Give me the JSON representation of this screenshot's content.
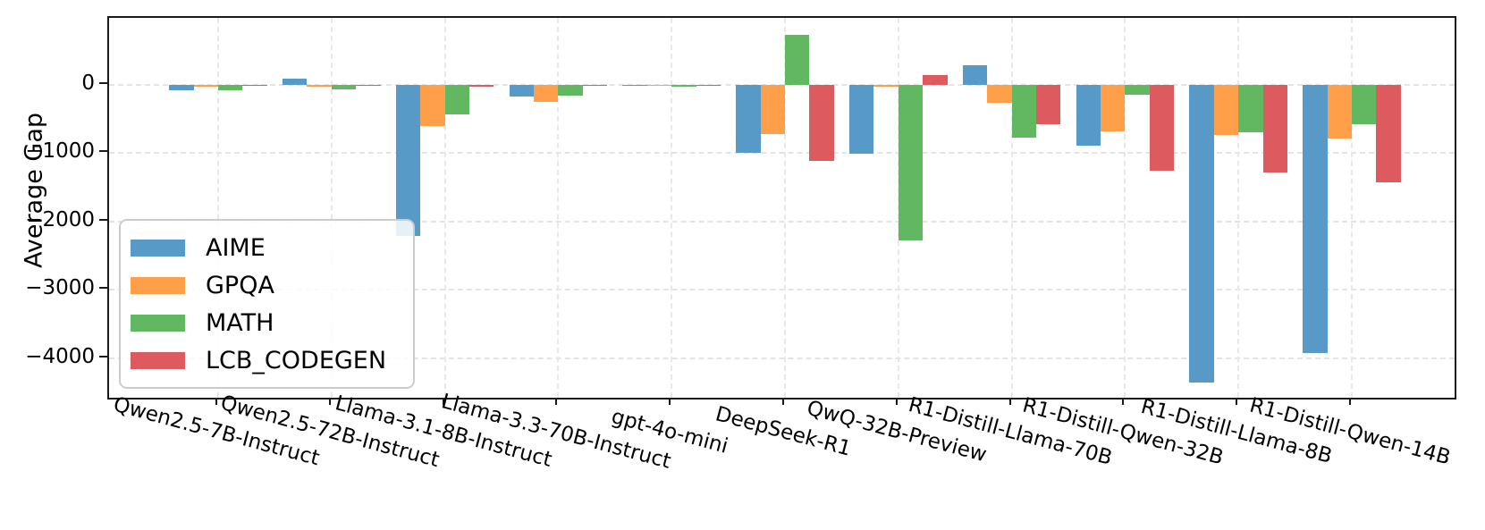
{
  "chart_data": {
    "type": "bar",
    "title": "",
    "xlabel": "",
    "ylabel": "Average Gap",
    "grid": true,
    "legend_position": "lower left",
    "ylim": [
      -4580,
      975
    ],
    "yticks": [
      0,
      -1000,
      -2000,
      -3000,
      -4000
    ],
    "ytick_labels": [
      "0",
      "−1000",
      "−2000",
      "−3000",
      "−4000"
    ],
    "categories": [
      "Qwen2.5-7B-Instruct",
      "Qwen2.5-72B-Instruct",
      "Llama-3.1-8B-Instruct",
      "Llama-3.3-70B-Instruct",
      "gpt-4o-mini",
      "DeepSeek-R1",
      "QwQ-32B-Preview",
      "R1-Distill-Llama-70B",
      "R1-Distill-Qwen-32B",
      "R1-Distill-Llama-8B",
      "R1-Distill-Qwen-14B"
    ],
    "series": [
      {
        "name": "AIME",
        "color": "#5799C7",
        "values": [
          -90,
          80,
          -2215,
          -175,
          -15,
          -1000,
          -1010,
          280,
          -890,
          -4360,
          -3930
        ]
      },
      {
        "name": "GPQA",
        "color": "#FF9F4A",
        "values": [
          -25,
          -35,
          -605,
          -250,
          -15,
          -730,
          -35,
          -270,
          -680,
          -740,
          -790
        ]
      },
      {
        "name": "MATH",
        "color": "#61B861",
        "values": [
          -85,
          -70,
          -440,
          -160,
          -35,
          730,
          -2280,
          -780,
          -155,
          -700,
          -585
        ]
      },
      {
        "name": "LCB_CODEGEN",
        "color": "#DD5B5E",
        "values": [
          -10,
          -15,
          -25,
          -15,
          -10,
          -1110,
          140,
          -580,
          -1265,
          -1285,
          -1430
        ]
      }
    ]
  }
}
